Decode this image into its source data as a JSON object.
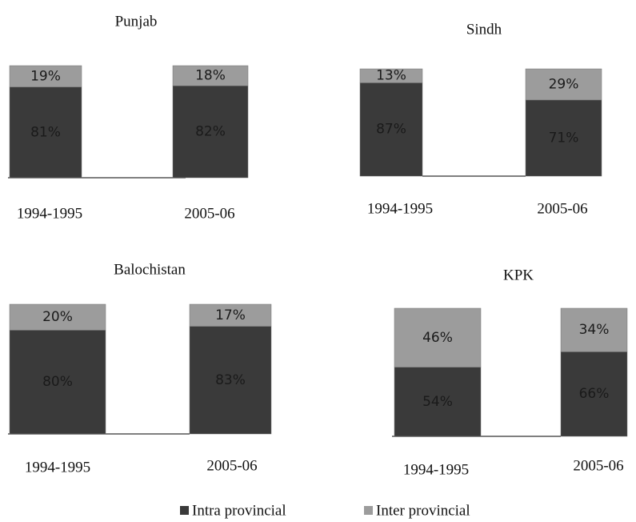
{
  "chart_data": [
    {
      "type": "stacked-bar",
      "title": "Punjab",
      "categories": [
        "1994-1995",
        "2005-06"
      ],
      "series": [
        {
          "name": "Intra provincial",
          "color": "#3a3a3a",
          "values": [
            81,
            82
          ],
          "value_labels": [
            "81%",
            "82%"
          ]
        },
        {
          "name": "Inter provincial",
          "color": "#9c9c9c",
          "values": [
            19,
            18
          ],
          "value_labels": [
            "19%",
            "18%"
          ]
        }
      ]
    },
    {
      "type": "stacked-bar",
      "title": "Sindh",
      "categories": [
        "1994-1995",
        "2005-06"
      ],
      "series": [
        {
          "name": "Intra provincial",
          "color": "#3a3a3a",
          "values": [
            87,
            71
          ],
          "value_labels": [
            "87%",
            "71%"
          ]
        },
        {
          "name": "Inter provincial",
          "color": "#9c9c9c",
          "values": [
            13,
            29
          ],
          "value_labels": [
            "13%",
            "29%"
          ]
        }
      ]
    },
    {
      "type": "stacked-bar",
      "title": "Balochistan",
      "categories": [
        "1994-1995",
        "2005-06"
      ],
      "series": [
        {
          "name": "Intra provincial",
          "color": "#3a3a3a",
          "values": [
            80,
            83
          ],
          "value_labels": [
            "80%",
            "83%"
          ]
        },
        {
          "name": "Inter provincial",
          "color": "#9c9c9c",
          "values": [
            20,
            17
          ],
          "value_labels": [
            "20%",
            "17%"
          ]
        }
      ]
    },
    {
      "type": "stacked-bar",
      "title": "KPK",
      "categories": [
        "1994-1995",
        "2005-06"
      ],
      "series": [
        {
          "name": "Intra provincial",
          "color": "#3a3a3a",
          "values": [
            54,
            66
          ],
          "value_labels": [
            "54%",
            "66%"
          ]
        },
        {
          "name": "Inter provincial",
          "color": "#9c9c9c",
          "values": [
            46,
            34
          ],
          "value_labels": [
            "46%",
            "34%"
          ]
        }
      ]
    }
  ]
}
